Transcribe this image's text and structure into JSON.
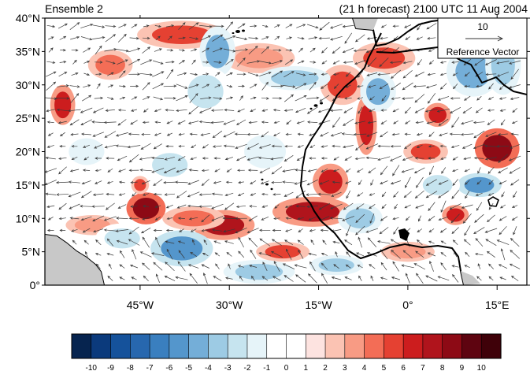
{
  "header": {
    "left_title": "Ensemble 2",
    "right_title": "(21 h forecast) 2100 UTC 11 Aug 2004"
  },
  "reference_vector": {
    "magnitude": "10",
    "label": "Reference Vector"
  },
  "map": {
    "lon_range": [
      -61,
      20
    ],
    "lat_range": [
      0,
      40
    ],
    "lat_ticks": [
      {
        "value": 0,
        "label": "0°"
      },
      {
        "value": 5,
        "label": "5°N"
      },
      {
        "value": 10,
        "label": "10°N"
      },
      {
        "value": 15,
        "label": "15°N"
      },
      {
        "value": 20,
        "label": "20°N"
      },
      {
        "value": 25,
        "label": "25°N"
      },
      {
        "value": 30,
        "label": "30°N"
      },
      {
        "value": 35,
        "label": "35°N"
      },
      {
        "value": 40,
        "label": "40°N"
      }
    ],
    "lon_ticks": [
      {
        "value": -45,
        "label": "45°W"
      },
      {
        "value": -30,
        "label": "30°W"
      },
      {
        "value": -15,
        "label": "15°W"
      },
      {
        "value": 0,
        "label": "0°"
      },
      {
        "value": 15,
        "label": "15°E"
      }
    ],
    "anomalies": [
      {
        "lon": -58,
        "lat": 27,
        "v": 6,
        "rx": 1.4,
        "ry": 2.0
      },
      {
        "lon": -44,
        "lat": 11.5,
        "v": 8,
        "rx": 2.2,
        "ry": 1.6
      },
      {
        "lon": -45,
        "lat": 15,
        "v": 5,
        "rx": 1.0,
        "ry": 0.9
      },
      {
        "lon": -31,
        "lat": 9,
        "v": 7,
        "rx": 3.5,
        "ry": 1.5
      },
      {
        "lon": -36,
        "lat": 10,
        "v": 4,
        "rx": 3.5,
        "ry": 1.2
      },
      {
        "lon": -16,
        "lat": 11,
        "v": 7,
        "rx": 4.5,
        "ry": 1.5
      },
      {
        "lon": -13,
        "lat": 15.5,
        "v": 6,
        "rx": 2.0,
        "ry": 1.8
      },
      {
        "lon": -21,
        "lat": 5,
        "v": 5,
        "rx": 3.0,
        "ry": 1.0
      },
      {
        "lon": -7,
        "lat": 24,
        "v": 6,
        "rx": 1.2,
        "ry": 3.0
      },
      {
        "lon": -11,
        "lat": 30,
        "v": 5,
        "rx": 2.5,
        "ry": 2.0
      },
      {
        "lon": -4,
        "lat": 34,
        "v": 5,
        "rx": 3.5,
        "ry": 1.6
      },
      {
        "lon": 5,
        "lat": 25.5,
        "v": 6,
        "rx": 1.5,
        "ry": 1.2
      },
      {
        "lon": 3,
        "lat": 20,
        "v": 5,
        "rx": 2.5,
        "ry": 1.2
      },
      {
        "lon": 15,
        "lat": 20.5,
        "v": 8,
        "rx": 2.5,
        "ry": 2.0
      },
      {
        "lon": 8,
        "lat": 10.5,
        "v": 6,
        "rx": 1.5,
        "ry": 1.0
      },
      {
        "lon": -38,
        "lat": 37.5,
        "v": 5,
        "rx": 5.0,
        "ry": 1.4
      },
      {
        "lon": -50,
        "lat": 33,
        "v": 4,
        "rx": 2.5,
        "ry": 1.5
      },
      {
        "lon": -25,
        "lat": 34,
        "v": 3,
        "rx": 4.0,
        "ry": 1.5
      },
      {
        "lon": -53,
        "lat": 9,
        "v": 3,
        "rx": 3.0,
        "ry": 1.0
      },
      {
        "lon": 0,
        "lat": 5,
        "v": 3,
        "rx": 3.0,
        "ry": 1.0
      },
      {
        "lon": -38,
        "lat": 5.5,
        "v": -6,
        "rx": 3.5,
        "ry": 1.8
      },
      {
        "lon": -32,
        "lat": 35,
        "v": -5,
        "rx": 2.0,
        "ry": 2.5
      },
      {
        "lon": -34,
        "lat": 29,
        "v": -3,
        "rx": 3.0,
        "ry": 2.5
      },
      {
        "lon": -19,
        "lat": 31,
        "v": -4,
        "rx": 4.0,
        "ry": 1.2
      },
      {
        "lon": -5,
        "lat": 29,
        "v": -5,
        "rx": 2.0,
        "ry": 2.0
      },
      {
        "lon": 11,
        "lat": 32,
        "v": -5,
        "rx": 3.0,
        "ry": 2.5
      },
      {
        "lon": 16,
        "lat": 33,
        "v": -4,
        "rx": 2.0,
        "ry": 3.0
      },
      {
        "lon": 12,
        "lat": 15,
        "v": -6,
        "rx": 2.5,
        "ry": 1.2
      },
      {
        "lon": -48,
        "lat": 7,
        "v": -3,
        "rx": 3.0,
        "ry": 1.5
      },
      {
        "lon": -25,
        "lat": 2,
        "v": -4,
        "rx": 4.0,
        "ry": 1.2
      },
      {
        "lon": -8,
        "lat": 10,
        "v": -4,
        "rx": 2.5,
        "ry": 1.5
      },
      {
        "lon": -40,
        "lat": 18,
        "v": -3,
        "rx": 3.0,
        "ry": 1.8
      },
      {
        "lon": -12,
        "lat": 3,
        "v": -4,
        "rx": 3.0,
        "ry": 1.0
      },
      {
        "lon": -54,
        "lat": 20,
        "v": -2,
        "rx": 3.0,
        "ry": 2.0
      },
      {
        "lon": 5,
        "lat": 15,
        "v": -3,
        "rx": 2.5,
        "ry": 1.5
      },
      {
        "lon": -24,
        "lat": 20,
        "v": -2,
        "rx": 3.5,
        "ry": 2.5
      }
    ]
  },
  "colorbar": {
    "labels": [
      "-10",
      "-9",
      "-8",
      "-7",
      "-6",
      "-5",
      "-4",
      "-3",
      "-2",
      "-1",
      "0",
      "1",
      "2",
      "3",
      "4",
      "5",
      "6",
      "7",
      "8",
      "9",
      "10"
    ],
    "colors": [
      "#06244f",
      "#0b3a7c",
      "#15529b",
      "#2767ae",
      "#3a7fbf",
      "#5496cc",
      "#74aed8",
      "#9dcbe4",
      "#c6e4ef",
      "#e6f4f9",
      "#ffffff",
      "#ffffff",
      "#fde3e0",
      "#fbc3b3",
      "#f89b84",
      "#f36d56",
      "#e54132",
      "#cc1d1e",
      "#b0141c",
      "#8d0a15",
      "#5e0410",
      "#3f0109"
    ]
  }
}
